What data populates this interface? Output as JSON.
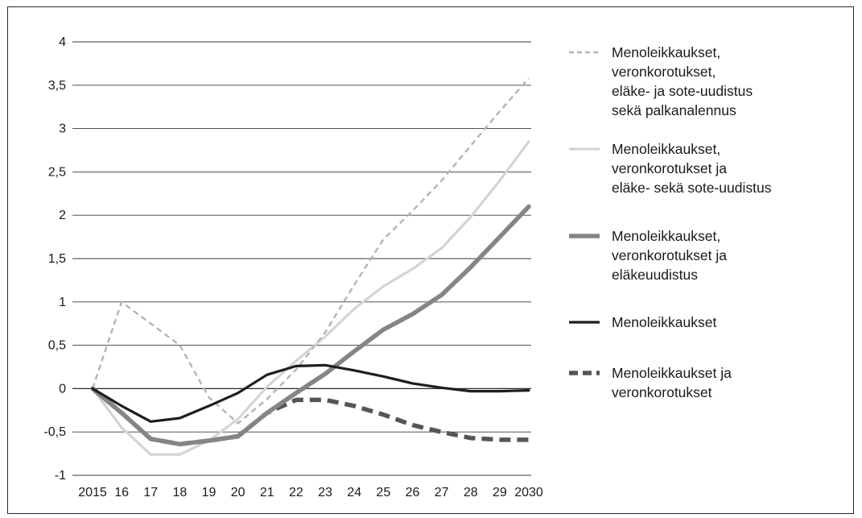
{
  "chart_data": {
    "type": "line",
    "title": "",
    "xlabel": "",
    "ylabel": "",
    "x": [
      2015,
      2016,
      2017,
      2018,
      2019,
      2020,
      2021,
      2022,
      2023,
      2024,
      2025,
      2026,
      2027,
      2028,
      2029,
      2030
    ],
    "x_tick_labels": [
      "2015",
      "16",
      "17",
      "18",
      "19",
      "20",
      "21",
      "22",
      "23",
      "24",
      "25",
      "26",
      "27",
      "28",
      "29",
      "2030"
    ],
    "y_tick_labels": [
      "4",
      "3,5",
      "3",
      "2,5",
      "2",
      "1,5",
      "1",
      "0,5",
      "0",
      "-0,5",
      "-1"
    ],
    "ylim": [
      -1,
      4
    ],
    "grid": "horizontal",
    "legend_position": "right",
    "series": [
      {
        "name": "Menoleikkaukset, veronkorotukset, eläke- ja sote-uudistus sekä palkanalennus",
        "legend_lines": [
          "Menoleikkaukset,",
          "veronkorotukset,",
          "eläke- ja sote-uudistus",
          "sekä palkanalennus"
        ],
        "color": "#b4b4b4",
        "style": "dashed-thin",
        "values": [
          0,
          1.0,
          0.75,
          0.5,
          -0.1,
          -0.4,
          -0.12,
          0.22,
          0.65,
          1.2,
          1.72,
          2.05,
          2.4,
          2.8,
          3.2,
          3.58
        ]
      },
      {
        "name": "Menoleikkaukset, veronkorotukset ja eläke- sekä sote-uudistus",
        "legend_lines": [
          "Menoleikkaukset,",
          "veronkorotukset ja",
          "eläke- sekä sote-uudistus"
        ],
        "color": "#d4d4d4",
        "style": "solid-medium",
        "values": [
          0,
          -0.45,
          -0.76,
          -0.76,
          -0.6,
          -0.35,
          0.02,
          0.32,
          0.6,
          0.92,
          1.18,
          1.38,
          1.62,
          1.98,
          2.4,
          2.85
        ]
      },
      {
        "name": "Menoleikkaukset, veronkorotukset ja eläkeuudistus",
        "legend_lines": [
          "Menoleikkaukset,",
          "veronkorotukset ja",
          "eläkeuudistus"
        ],
        "color": "#858585",
        "style": "solid-thick",
        "values": [
          0,
          -0.28,
          -0.58,
          -0.64,
          -0.6,
          -0.55,
          -0.28,
          -0.05,
          0.17,
          0.43,
          0.68,
          0.86,
          1.08,
          1.4,
          1.75,
          2.1
        ]
      },
      {
        "name": "Menoleikkaukset",
        "legend_lines": [
          "Menoleikkaukset"
        ],
        "color": "#1e1e1e",
        "style": "solid-medium",
        "values": [
          0,
          -0.2,
          -0.38,
          -0.34,
          -0.2,
          -0.05,
          0.16,
          0.26,
          0.27,
          0.21,
          0.14,
          0.06,
          0.01,
          -0.03,
          -0.03,
          -0.02
        ]
      },
      {
        "name": "Menoleikkaukset ja veronkorotukset",
        "legend_lines": [
          "Menoleikkaukset ja",
          "veronkorotukset"
        ],
        "color": "#555555",
        "style": "dashed-thick",
        "values": [
          0,
          -0.28,
          -0.58,
          -0.64,
          -0.6,
          -0.55,
          -0.28,
          -0.13,
          -0.13,
          -0.2,
          -0.3,
          -0.42,
          -0.5,
          -0.57,
          -0.59,
          -0.59
        ]
      }
    ]
  }
}
